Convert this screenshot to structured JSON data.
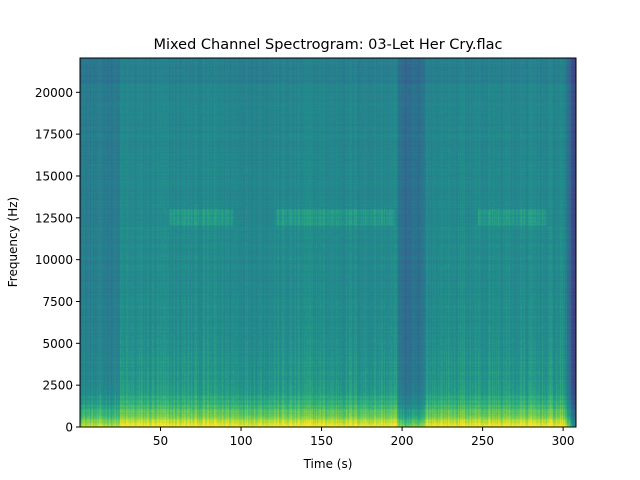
{
  "chart_data": {
    "type": "heatmap",
    "title": "Mixed Channel Spectrogram: 03-Let Her Cry.flac",
    "xlabel": "Time (s)",
    "ylabel": "Frequency (Hz)",
    "xlim": [
      0,
      308
    ],
    "ylim": [
      0,
      22050
    ],
    "x_ticks": [
      50,
      100,
      150,
      200,
      250,
      300
    ],
    "y_ticks": [
      0,
      2500,
      5000,
      7500,
      10000,
      12500,
      15000,
      17500,
      20000
    ],
    "colormap": "viridis",
    "grid": false,
    "low_energy_time_ranges": [
      [
        197,
        215
      ],
      [
        304,
        308
      ]
    ],
    "high_band_segments": [
      {
        "t_start": 55,
        "t_end": 95,
        "f_low": 12000,
        "f_high": 13000
      },
      {
        "t_start": 122,
        "t_end": 195,
        "f_low": 12000,
        "f_high": 13000
      },
      {
        "t_start": 247,
        "t_end": 290,
        "f_low": 12000,
        "f_high": 13000
      }
    ]
  }
}
